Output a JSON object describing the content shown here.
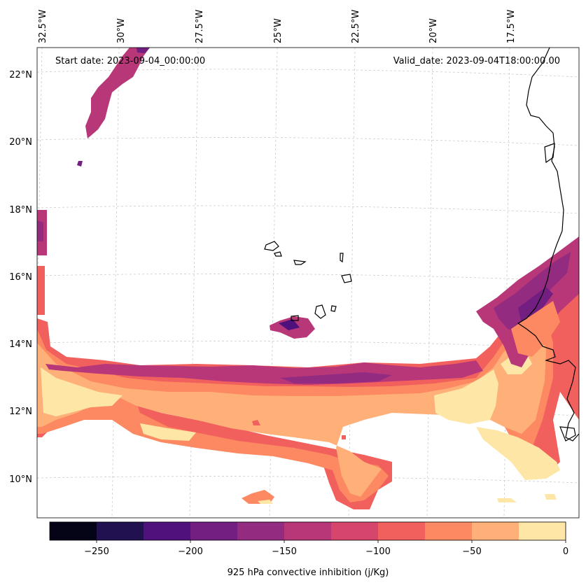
{
  "map": {
    "start_date": "Start date: 2023-09-04_00:00:00",
    "valid_date": "Valid_date: 2023-09-04T18:00:00.00",
    "lon_labels": [
      "32.5°W",
      "30°W",
      "27.5°W",
      "25°W",
      "22.5°W",
      "20°W",
      "17.5°W"
    ],
    "lat_labels": [
      "22°N",
      "20°N",
      "18°N",
      "16°N",
      "14°N",
      "12°N",
      "10°N"
    ],
    "region": "Eastern tropical Atlantic, Cabo Verde and West African coast"
  },
  "colorbar": {
    "label": "925 hPa convective inhibition (j/Kg)",
    "tick_labels": [
      "−250",
      "−200",
      "−150",
      "−100",
      "−50",
      "0"
    ],
    "bounds": [
      -275,
      -250,
      -225,
      -200,
      -175,
      -150,
      -125,
      -100,
      -75,
      -50,
      -25,
      0
    ],
    "colors": [
      "#050416",
      "#221150",
      "#4f117b",
      "#721f81",
      "#932b80",
      "#b73779",
      "#d6456c",
      "#f1605d",
      "#fc8961",
      "#feb078",
      "#fde6a6"
    ]
  }
}
